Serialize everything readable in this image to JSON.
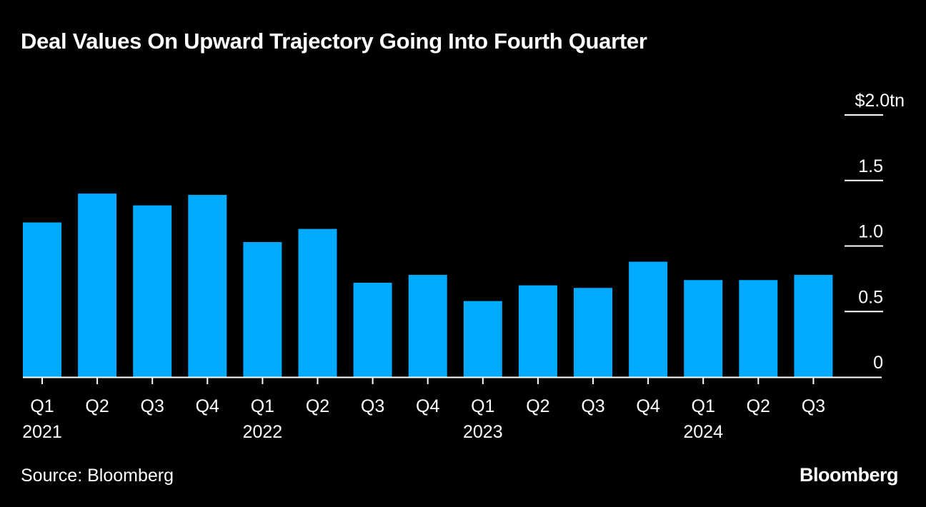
{
  "title": "Deal Values On Upward Trajectory Going Into Fourth Quarter",
  "source": "Source: Bloomberg",
  "logo": "Bloomberg",
  "colors": {
    "background": "#000000",
    "bar": "#00aaff",
    "text": "#ffffff"
  },
  "chart_data": {
    "type": "bar",
    "categories": [
      "Q1",
      "Q2",
      "Q3",
      "Q4",
      "Q1",
      "Q2",
      "Q3",
      "Q4",
      "Q1",
      "Q2",
      "Q3",
      "Q4",
      "Q1",
      "Q2",
      "Q3"
    ],
    "year_labels": [
      "2021",
      "",
      "",
      "",
      "2022",
      "",
      "",
      "",
      "2023",
      "",
      "",
      "",
      "2024",
      "",
      ""
    ],
    "values": [
      1.18,
      1.4,
      1.31,
      1.39,
      1.03,
      1.13,
      0.72,
      0.78,
      0.58,
      0.7,
      0.68,
      0.88,
      0.74,
      0.74,
      0.78
    ],
    "ylim": [
      0,
      2.0
    ],
    "yticks": [
      0,
      0.5,
      1.0,
      1.5,
      2.0
    ],
    "ytick_labels": [
      "0",
      "0.5",
      "1.0",
      "1.5",
      "$2.0tn"
    ],
    "grid": false,
    "legend": "none"
  }
}
